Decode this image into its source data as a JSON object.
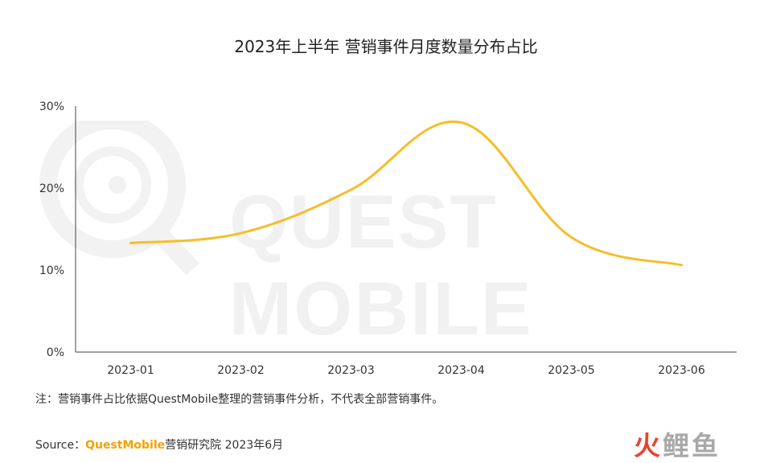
{
  "title": "2023年上半年 营销事件月度数量分布占比",
  "watermark": "QUEST MOBILE",
  "note": "注：营销事件占比依据QuestMobile整理的营销事件分析，不代表全部营销事件。",
  "source": {
    "prefix": "Source：",
    "brand": "QuestMobile",
    "suffix": "营销研究院 2023年6月"
  },
  "logo": {
    "text": "火鲤鱼",
    "accent_color": "#e8452f"
  },
  "chart_data": {
    "type": "line",
    "title": "2023年上半年 营销事件月度数量分布占比",
    "categories": [
      "2023-01",
      "2023-02",
      "2023-03",
      "2023-04",
      "2023-05",
      "2023-06"
    ],
    "series": [
      {
        "values": [
          13.3,
          14.5,
          19.8,
          28.0,
          14.0,
          10.6
        ]
      }
    ],
    "yticks": [
      "0%",
      "10%",
      "20%",
      "30%"
    ],
    "ylim": [
      0,
      30
    ],
    "xlabel": "",
    "ylabel": "",
    "grid": false,
    "smooth": true,
    "line_color": "#f7bd2a"
  }
}
